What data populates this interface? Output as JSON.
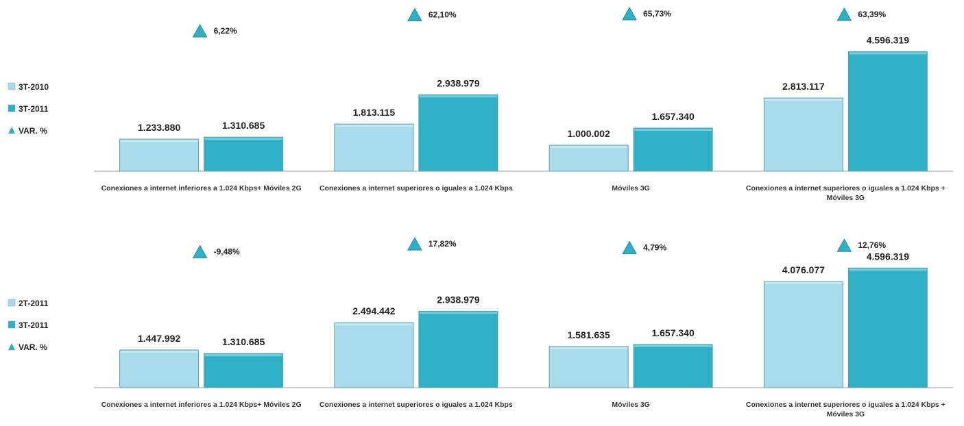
{
  "chart_data": [
    {
      "type": "bar",
      "categories": [
        "Conexiones a internet inferiores a 1.024 Kbps+ Móviles 2G",
        "Conexiones a internet superiores o iguales a 1.024 Kbps",
        "Móviles 3G",
        "Conexiones a internet superiores o iguales a 1.024 Kbps + Móviles 3G"
      ],
      "series": [
        {
          "name": "3T-2010",
          "color": "#a8dcea",
          "values": [
            1233880,
            1813115,
            1000002,
            2813117
          ],
          "value_labels": [
            "1.233.880",
            "1.813.115",
            "1.000.002",
            "2.813.117"
          ]
        },
        {
          "name": "3T-2011",
          "color": "#2fb0c6",
          "values": [
            1310685,
            2938979,
            1657340,
            4596319
          ],
          "value_labels": [
            "1.310.685",
            "2.938.979",
            "1.657.340",
            "4.596.319"
          ]
        },
        {
          "name": "VAR. %",
          "color": "#2fb0c6",
          "axis": "y2",
          "marker": "triangle",
          "values": [
            6.22,
            62.1,
            65.73,
            63.39
          ],
          "value_labels": [
            "6,22%",
            "62,10%",
            "65,73%",
            "63,39%"
          ]
        }
      ],
      "ylim": [
        0,
        5000000
      ],
      "y2lim": [
        -100,
        100
      ]
    },
    {
      "type": "bar",
      "categories": [
        "Conexiones a internet inferiores a 1.024 Kbps+ Móviles 2G",
        "Conexiones a internet superiores o iguales a 1.024 Kbps",
        "Móviles 3G",
        "Conexiones a internet superiores o iguales a 1.024 Kbps + Móviles 3G"
      ],
      "series": [
        {
          "name": "2T-2011",
          "color": "#a8dcea",
          "values": [
            1447992,
            2494442,
            1581635,
            4076077
          ],
          "value_labels": [
            "1.447.992",
            "2.494.442",
            "1.581.635",
            "4.076.077"
          ]
        },
        {
          "name": "3T-2011",
          "color": "#2fb0c6",
          "values": [
            1310685,
            2938979,
            1657340,
            4596319
          ],
          "value_labels": [
            "1.310.685",
            "2.938.979",
            "1.657.340",
            "4.596.319"
          ]
        },
        {
          "name": "VAR. %",
          "color": "#2fb0c6",
          "axis": "y2",
          "marker": "triangle",
          "values": [
            -9.48,
            17.82,
            4.79,
            12.76
          ],
          "value_labels": [
            "-9,48%",
            "17,82%",
            "4,79%",
            "12,76%"
          ]
        }
      ],
      "ylim": [
        0,
        5000000
      ],
      "y2lim": [
        -100,
        100
      ]
    }
  ]
}
